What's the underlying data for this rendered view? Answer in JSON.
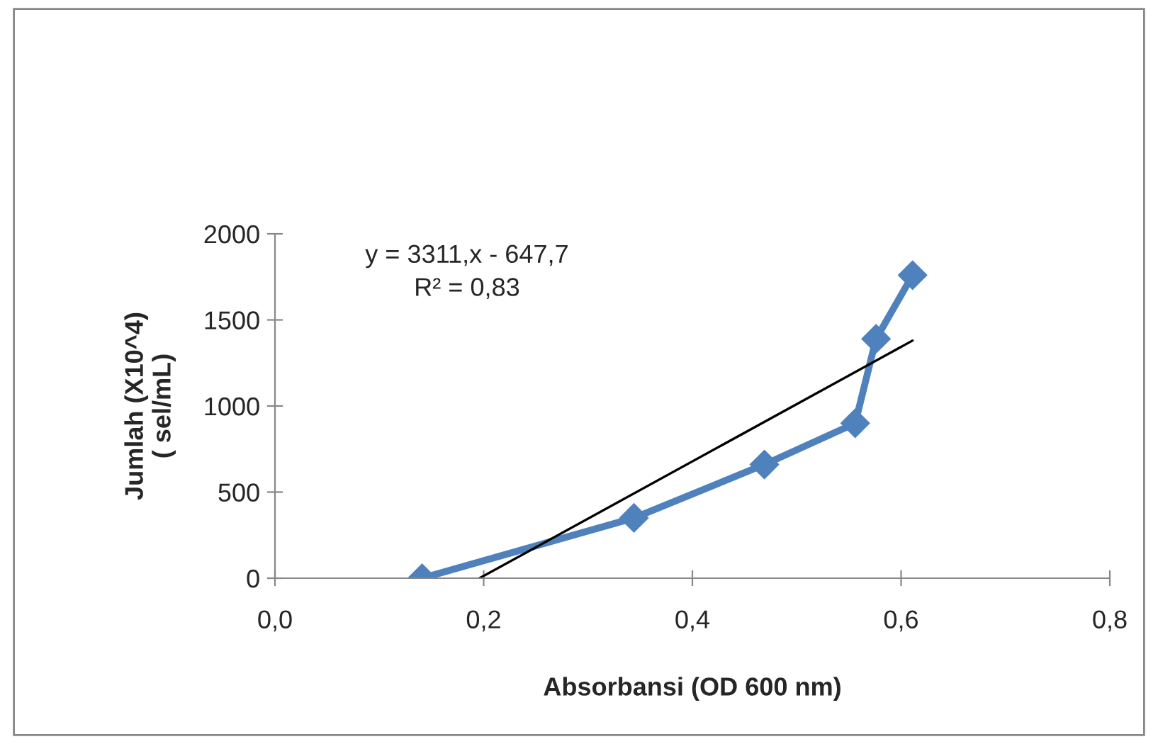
{
  "chart_data": {
    "type": "line",
    "xlabel": "Absorbansi (OD 600 nm)",
    "ylabel": "Jumlah (X10^4)\n( sel/mL)",
    "annotations": [
      "y = 3311,x - 647,7\nR² = 0,83"
    ],
    "xlim": [
      0,
      0.8
    ],
    "xticks": [
      {
        "value": 0,
        "label": "0,0"
      },
      {
        "value": 0.2,
        "label": "0,2"
      },
      {
        "value": 0.4,
        "label": "0,4"
      },
      {
        "value": 0.6,
        "label": "0,6"
      },
      {
        "value": 0.8,
        "label": "0,8"
      }
    ],
    "ylim": [
      0,
      2000
    ],
    "yticks": [
      0,
      500,
      1000,
      1500,
      2000
    ],
    "grid": false,
    "legend": false,
    "series": [
      {
        "color": "#4f81bd",
        "marker": "diamond",
        "line_style": "solid",
        "x": [
          0.141,
          0.344,
          0.469,
          0.556,
          0.576,
          0.611
        ],
        "values": [
          0,
          350,
          660,
          900,
          1390,
          1760
        ]
      },
      {
        "color": "#000000",
        "marker": "none",
        "line_style": "solid",
        "x": [
          0.196,
          0.611
        ],
        "values": [
          0,
          1380
        ]
      }
    ]
  }
}
